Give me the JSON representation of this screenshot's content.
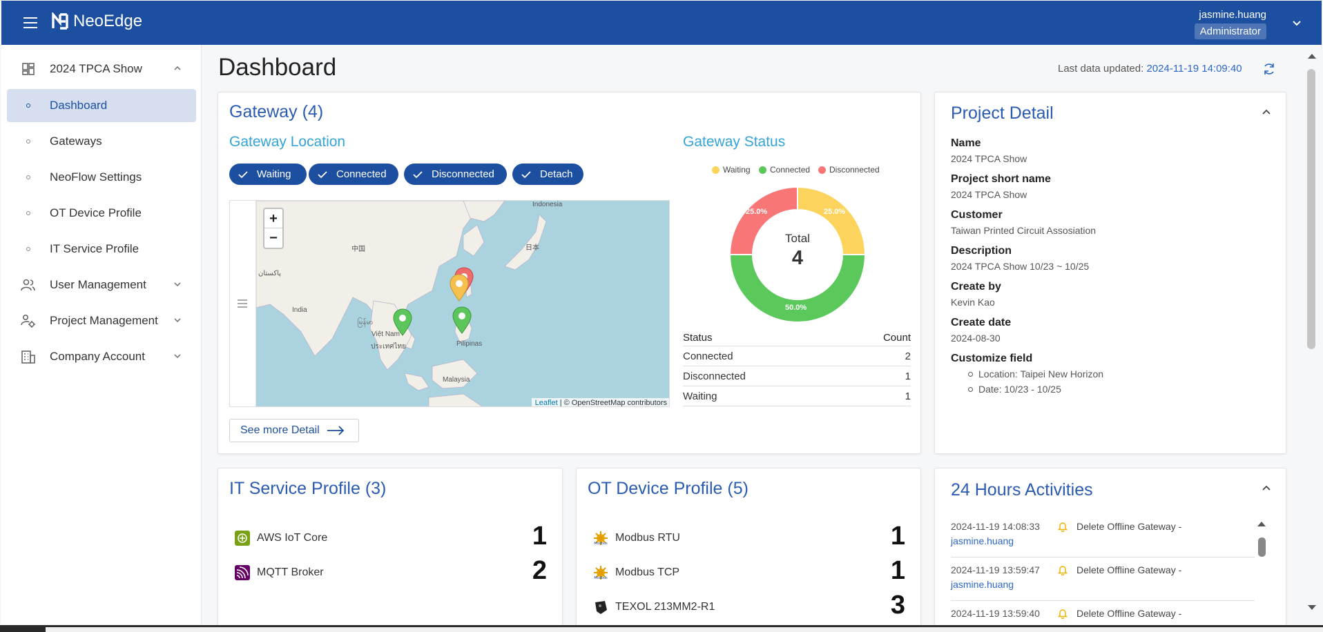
{
  "header": {
    "app_name": "NeoEdge",
    "user_name": "jasmine.huang",
    "user_role": "Administrator"
  },
  "sidebar": {
    "project": "2024 TPCA Show",
    "items": [
      {
        "label": "Dashboard"
      },
      {
        "label": "Gateways"
      },
      {
        "label": "NeoFlow Settings"
      },
      {
        "label": "OT Device Profile"
      },
      {
        "label": "IT Service Profile"
      }
    ],
    "groups": [
      {
        "label": "User Management"
      },
      {
        "label": "Project Management"
      },
      {
        "label": "Company Account"
      }
    ]
  },
  "page": {
    "title": "Dashboard",
    "last_updated_label": "Last data updated:",
    "last_updated_value": "2024-11-19 14:09:40"
  },
  "gateway": {
    "title": "Gateway (4)",
    "location_title": "Gateway Location",
    "status_title": "Gateway Status",
    "filters": [
      "Waiting",
      "Connected",
      "Disconnected",
      "Detach"
    ],
    "map": {
      "zoom_in": "+",
      "zoom_out": "−",
      "leaflet": "Leaflet",
      "attribution": "| © OpenStreetMap contributors",
      "labels": [
        "中国",
        "日本",
        "India",
        "Việt Nam",
        "Pilipinas",
        "Malaysia",
        "پاکستان",
        "ประเทศไทย",
        "မြန်မာ",
        "Indonesia"
      ],
      "markers": [
        {
          "status": "Disconnected",
          "color": "#f06b6b"
        },
        {
          "status": "Waiting",
          "color": "#f5c04d"
        },
        {
          "status": "Connected",
          "color": "#5cc65c"
        },
        {
          "status": "Connected",
          "color": "#5cc65c"
        }
      ]
    },
    "see_more": "See more Detail",
    "legend": [
      {
        "label": "Waiting",
        "color": "#fcd35c"
      },
      {
        "label": "Connected",
        "color": "#5ac85a"
      },
      {
        "label": "Disconnected",
        "color": "#f87676"
      }
    ],
    "donut": {
      "total_label": "Total",
      "total_value": "4",
      "slices": [
        {
          "label": "Waiting",
          "value": 1,
          "pct": "25.0%",
          "color": "#fcd35c"
        },
        {
          "label": "Connected",
          "value": 2,
          "pct": "50.0%",
          "color": "#5ac85a"
        },
        {
          "label": "Disconnected",
          "value": 1,
          "pct": "25.0%",
          "color": "#f87676"
        }
      ]
    },
    "table": {
      "headers": [
        "Status",
        "Count"
      ],
      "rows": [
        {
          "status": "Connected",
          "count": "2"
        },
        {
          "status": "Disconnected",
          "count": "1"
        },
        {
          "status": "Waiting",
          "count": "1"
        }
      ]
    }
  },
  "project_detail": {
    "title": "Project Detail",
    "fields": [
      {
        "label": "Name",
        "value": "2024 TPCA Show"
      },
      {
        "label": "Project short name",
        "value": "2024 TPCA Show"
      },
      {
        "label": "Customer",
        "value": "Taiwan Printed Circuit Assosiation"
      },
      {
        "label": "Description",
        "value": "2024 TPCA Show 10/23 ~ 10/25"
      },
      {
        "label": "Create by",
        "value": "Kevin Kao"
      },
      {
        "label": "Create date",
        "value": "2024-08-30"
      }
    ],
    "custom_label": "Customize field",
    "custom_items": [
      "Location: Taipei New Horizon",
      "Date: 10/23 - 10/25"
    ]
  },
  "it_service": {
    "title": "IT Service Profile (3)",
    "items": [
      {
        "label": "AWS IoT Core",
        "count": "1",
        "icon": "aws-iot-icon"
      },
      {
        "label": "MQTT Broker",
        "count": "2",
        "icon": "mqtt-icon"
      }
    ]
  },
  "ot_device": {
    "title": "OT Device Profile (5)",
    "items": [
      {
        "label": "Modbus RTU",
        "count": "1",
        "icon": "modbus-icon"
      },
      {
        "label": "Modbus TCP",
        "count": "1",
        "icon": "modbus-icon"
      },
      {
        "label": "TEXOL 213MM2-R1",
        "count": "3",
        "icon": "texol-icon"
      }
    ]
  },
  "activities": {
    "title": "24 Hours Activities",
    "items": [
      {
        "time": "2024-11-19 14:08:33",
        "text": "Delete Offline Gateway -",
        "user": "jasmine.huang"
      },
      {
        "time": "2024-11-19 13:59:47",
        "text": "Delete Offline Gateway -",
        "user": "jasmine.huang"
      },
      {
        "time": "2024-11-19 13:59:40",
        "text": "Delete Offline Gateway -",
        "user": ""
      }
    ]
  },
  "colors": {
    "brand": "#1d4fa1",
    "accent_title": "#2a5bb0",
    "sub_title": "#34a3d8",
    "link": "#2d66c6"
  }
}
